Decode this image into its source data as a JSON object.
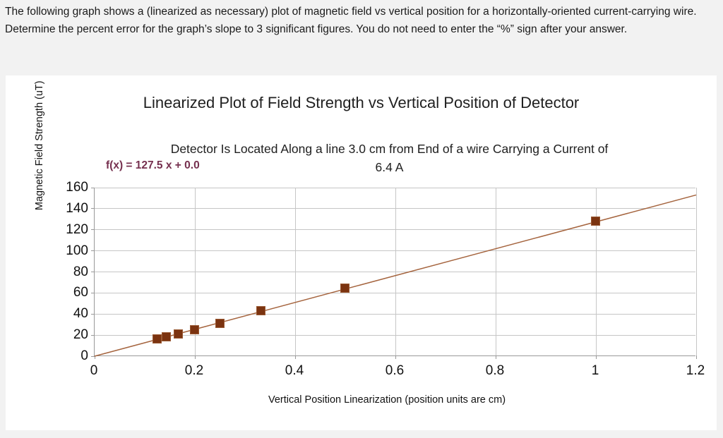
{
  "question": {
    "text": "The following graph shows a (linearized as necessary) plot of magnetic field vs vertical position for a horizontally-oriented current-carrying wire. Determine the percent error for the graph’s slope to 3 significant figures. You do not need to enter the “%” sign after your answer."
  },
  "chart_data": {
    "type": "scatter",
    "title": "Linearized Plot of Field Strength vs Vertical Position of Detector",
    "subtitle_line1": "Detector Is Located Along a line 3.0 cm from End of a wire Carrying a Current of",
    "subtitle_line2": "6.4 A",
    "equation": "f(x) = 127.5 x + 0.0",
    "slope": 127.5,
    "intercept": 0.0,
    "x": [
      0.125,
      0.143,
      0.167,
      0.2,
      0.25,
      0.333,
      0.5,
      1.0
    ],
    "y": [
      16,
      18,
      21,
      25,
      31,
      43,
      64,
      128
    ],
    "xlabel": "Vertical Position Linearization (position units are cm)",
    "ylabel": "Magnetic Field Strength (uT)",
    "xlim": [
      0,
      1.2
    ],
    "ylim": [
      0,
      160
    ],
    "xticks": [
      0,
      0.2,
      0.4,
      0.6,
      0.8,
      1,
      1.2
    ],
    "xtick_labels": [
      "0",
      "0.2",
      "0.4",
      "0.6",
      "0.8",
      "1",
      "1.2"
    ],
    "yticks": [
      0,
      20,
      40,
      60,
      80,
      100,
      120,
      140,
      160
    ],
    "ytick_labels": [
      "0",
      "20",
      "40",
      "60",
      "80",
      "100",
      "120",
      "140",
      "160"
    ],
    "grid": true,
    "legend": "none",
    "colors": {
      "point": "#7b3310",
      "trend_line": "#a5643e",
      "equation_text": "#76304f",
      "grid_line": "#c6c6c6"
    }
  }
}
